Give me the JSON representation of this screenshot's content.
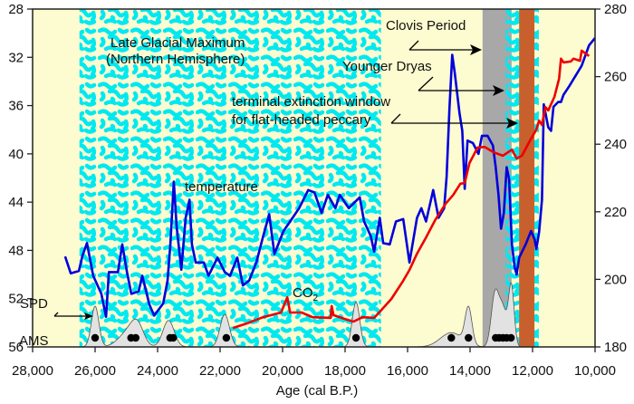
{
  "chart_data": {
    "type": "line",
    "xlabel": "Age (cal B.P.)",
    "xlim": [
      28000,
      10000
    ],
    "x_ticks": [
      "28,000",
      "26,000",
      "24,000",
      "22,000",
      "20,000",
      "18,000",
      "16,000",
      "14,000",
      "12,000",
      "10,000"
    ],
    "x_tick_values": [
      28000,
      26000,
      24000,
      22000,
      20000,
      18000,
      16000,
      14000,
      12000,
      10000
    ],
    "y_left": {
      "lim": [
        28,
        56
      ],
      "inverted": true,
      "ticks": [
        "28",
        "32",
        "36",
        "40",
        "44",
        "48",
        "52",
        "56"
      ],
      "tick_values": [
        28,
        32,
        36,
        40,
        44,
        48,
        52,
        56
      ]
    },
    "y_right": {
      "lim": [
        180,
        280
      ],
      "ticks": [
        "180",
        "200",
        "220",
        "240",
        "260",
        "280"
      ],
      "tick_values": [
        180,
        200,
        220,
        240,
        260,
        280
      ]
    },
    "colors": {
      "background": "#fdfbd0",
      "texture": "#00e8f0",
      "clovis": "#a8a8a8",
      "peccary": "#c8602e",
      "temperature": "#0000dd",
      "co2": "#ee0000",
      "spd": "#e2e2e2"
    },
    "shaded_periods": [
      {
        "name": "Late Glacial Maximum",
        "range": [
          26500,
          16850
        ],
        "style": "texture"
      },
      {
        "name": "Clovis Period",
        "range": [
          13600,
          12670
        ],
        "style": "gray"
      },
      {
        "name": "Younger Dryas",
        "range": [
          12870,
          11800
        ],
        "style": "texture"
      },
      {
        "name": "terminal extinction window",
        "range": [
          12430,
          11940
        ],
        "style": "brown"
      }
    ],
    "series": [
      {
        "name": "temperature",
        "axis": "left",
        "points": [
          [
            26960,
            48.5
          ],
          [
            26780,
            49.9
          ],
          [
            26520,
            49.7
          ],
          [
            26400,
            48.4
          ],
          [
            26260,
            47.4
          ],
          [
            26060,
            50.1
          ],
          [
            25800,
            51.6
          ],
          [
            25650,
            53.5
          ],
          [
            25560,
            49.8
          ],
          [
            25270,
            49.8
          ],
          [
            25130,
            47.5
          ],
          [
            24980,
            49.8
          ],
          [
            24840,
            51.6
          ],
          [
            24610,
            51.4
          ],
          [
            24490,
            50.1
          ],
          [
            24260,
            52.5
          ],
          [
            24110,
            53.4
          ],
          [
            23820,
            52.4
          ],
          [
            23680,
            50.5
          ],
          [
            23590,
            47.5
          ],
          [
            23480,
            42.3
          ],
          [
            23390,
            46.0
          ],
          [
            23240,
            49.6
          ],
          [
            23100,
            45.3
          ],
          [
            22980,
            43.8
          ],
          [
            22900,
            47.5
          ],
          [
            22780,
            49.0
          ],
          [
            22520,
            49.0
          ],
          [
            22370,
            50.1
          ],
          [
            22080,
            48.6
          ],
          [
            21850,
            49.8
          ],
          [
            21680,
            50.1
          ],
          [
            21450,
            48.6
          ],
          [
            21270,
            50.9
          ],
          [
            21070,
            50.5
          ],
          [
            20840,
            49.0
          ],
          [
            20630,
            46.9
          ],
          [
            20430,
            45.0
          ],
          [
            20260,
            48.3
          ],
          [
            19970,
            46.4
          ],
          [
            19760,
            45.6
          ],
          [
            19470,
            44.5
          ],
          [
            19180,
            43.0
          ],
          [
            18980,
            43.2
          ],
          [
            18750,
            44.9
          ],
          [
            18550,
            43.4
          ],
          [
            18310,
            44.5
          ],
          [
            18170,
            43.4
          ],
          [
            17880,
            44.5
          ],
          [
            17650,
            43.9
          ],
          [
            17530,
            43.6
          ],
          [
            17390,
            45.6
          ],
          [
            17180,
            46.8
          ],
          [
            17070,
            48.1
          ],
          [
            16890,
            45.3
          ],
          [
            16780,
            47.4
          ],
          [
            16570,
            47.5
          ],
          [
            16370,
            45.6
          ],
          [
            16140,
            45.4
          ],
          [
            15940,
            49.0
          ],
          [
            15700,
            45.3
          ],
          [
            15560,
            44.5
          ],
          [
            15410,
            45.6
          ],
          [
            15180,
            43.0
          ],
          [
            15010,
            45.3
          ],
          [
            14830,
            44.5
          ],
          [
            14750,
            41.9
          ],
          [
            14660,
            36.3
          ],
          [
            14570,
            31.8
          ],
          [
            14490,
            33.3
          ],
          [
            14340,
            36.6
          ],
          [
            14250,
            38.1
          ],
          [
            14170,
            42.9
          ],
          [
            14080,
            38.9
          ],
          [
            13910,
            39.1
          ],
          [
            13730,
            40.0
          ],
          [
            13620,
            38.5
          ],
          [
            13440,
            38.5
          ],
          [
            13270,
            39.3
          ],
          [
            13180,
            41.1
          ],
          [
            13090,
            43.4
          ],
          [
            13010,
            46.2
          ],
          [
            12920,
            44.9
          ],
          [
            12830,
            41.1
          ],
          [
            12750,
            42.1
          ],
          [
            12660,
            47.5
          ],
          [
            12570,
            49.4
          ],
          [
            12510,
            50.0
          ],
          [
            12430,
            48.6
          ],
          [
            12220,
            47.5
          ],
          [
            12050,
            46.4
          ],
          [
            11930,
            47.1
          ],
          [
            11880,
            47.9
          ],
          [
            11790,
            46.5
          ],
          [
            11700,
            43.8
          ],
          [
            11640,
            35.9
          ],
          [
            11500,
            37.8
          ],
          [
            11410,
            38.1
          ],
          [
            11330,
            36.1
          ],
          [
            11180,
            35.7
          ],
          [
            11090,
            35.7
          ],
          [
            11010,
            35.1
          ],
          [
            10830,
            34.4
          ],
          [
            10430,
            32.7
          ],
          [
            10190,
            31.0
          ],
          [
            10000,
            30.4
          ]
        ]
      },
      {
        "name": "CO2",
        "axis": "right",
        "points": [
          [
            21590,
            185.6
          ],
          [
            21130,
            187.0
          ],
          [
            20630,
            188.8
          ],
          [
            20050,
            190.2
          ],
          [
            19850,
            194.7
          ],
          [
            19760,
            190.2
          ],
          [
            19390,
            190.2
          ],
          [
            19040,
            188.8
          ],
          [
            18460,
            188.6
          ],
          [
            18430,
            192.1
          ],
          [
            18370,
            189.4
          ],
          [
            18020,
            188.3
          ],
          [
            17730,
            187.5
          ],
          [
            17440,
            188.8
          ],
          [
            17070,
            188.6
          ],
          [
            16860,
            190.7
          ],
          [
            16520,
            194.2
          ],
          [
            16140,
            199.6
          ],
          [
            15940,
            202.8
          ],
          [
            15700,
            207.6
          ],
          [
            15410,
            212.4
          ],
          [
            15120,
            217.5
          ],
          [
            14780,
            222.4
          ],
          [
            14540,
            225.0
          ],
          [
            14310,
            228.3
          ],
          [
            14170,
            228.5
          ],
          [
            14020,
            234.4
          ],
          [
            13760,
            239.0
          ],
          [
            13530,
            239.2
          ],
          [
            13240,
            237.6
          ],
          [
            12950,
            236.6
          ],
          [
            12660,
            238.4
          ],
          [
            12510,
            235.8
          ],
          [
            12340,
            236.6
          ],
          [
            12080,
            241.1
          ],
          [
            11880,
            244.3
          ],
          [
            11790,
            247.0
          ],
          [
            11700,
            245.7
          ],
          [
            11590,
            251.0
          ],
          [
            11500,
            250.0
          ],
          [
            11300,
            254.0
          ],
          [
            11150,
            259.4
          ],
          [
            11090,
            265.3
          ],
          [
            11010,
            264.2
          ],
          [
            10770,
            264.5
          ],
          [
            10690,
            265.3
          ],
          [
            10480,
            264.7
          ],
          [
            10430,
            267.7
          ],
          [
            10190,
            266.1
          ]
        ]
      }
    ],
    "spd_peaks": [
      [
        26000,
        1.0,
        120
      ],
      [
        24950,
        0.35,
        300
      ],
      [
        24650,
        0.45,
        200
      ],
      [
        23650,
        0.65,
        180
      ],
      [
        21850,
        0.8,
        150
      ],
      [
        17650,
        1.1,
        120
      ],
      [
        14600,
        0.35,
        350
      ],
      [
        14050,
        0.9,
        110
      ],
      [
        13200,
        1.3,
        120
      ],
      [
        12950,
        0.9,
        120
      ],
      [
        12680,
        1.5,
        90
      ]
    ],
    "ams_dates": [
      26000,
      24850,
      24700,
      23600,
      23500,
      21800,
      17650,
      14600,
      14050,
      13180,
      13070,
      12950,
      12830,
      12690
    ],
    "annotations": {
      "lgm_line1": "Late Glacial Maximum",
      "lgm_line2": "(Northern Hemisphere)",
      "temperature": "temperature",
      "co2": "CO",
      "co2_sub": "2",
      "clovis": "Clovis Period",
      "younger_dryas": "Younger Dryas",
      "extinction_line1": "terminal extinction window",
      "extinction_line2": "for flat-headed peccary",
      "spd": "SPD",
      "ams": "AMS"
    }
  }
}
